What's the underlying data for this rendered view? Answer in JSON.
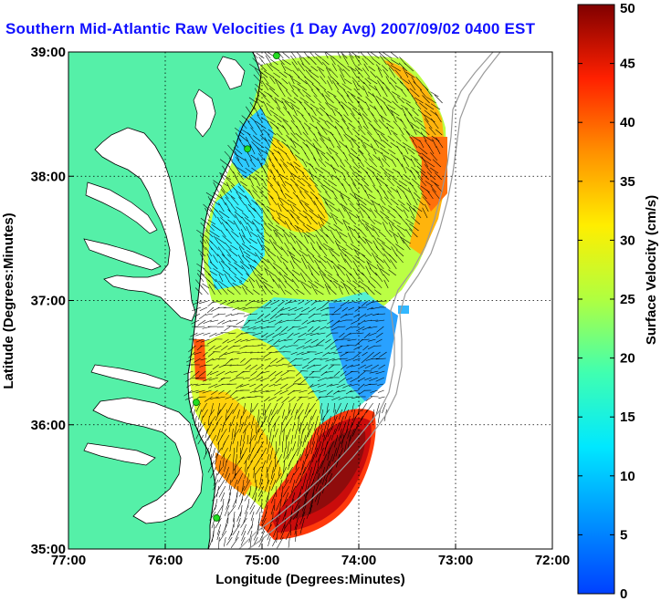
{
  "chart_data": {
    "type": "heatmap",
    "title": "Southern Mid-Atlantic Raw Velocities (1 Day Avg) 2007/09/02 0400 EST",
    "xlabel": "Longitude (Degrees:Minutes)",
    "ylabel": "Latitude (Degrees:Minutes)",
    "xlim": [
      -77,
      -72
    ],
    "ylim": [
      35,
      39
    ],
    "x_ticks": [
      {
        "value": -77,
        "label": "77:00"
      },
      {
        "value": -76,
        "label": "76:00"
      },
      {
        "value": -75,
        "label": "75:00"
      },
      {
        "value": -74,
        "label": "74:00"
      },
      {
        "value": -73,
        "label": "73:00"
      },
      {
        "value": -72,
        "label": "72:00"
      }
    ],
    "y_ticks": [
      {
        "value": 35,
        "label": "35:00"
      },
      {
        "value": 36,
        "label": "36:00"
      },
      {
        "value": 37,
        "label": "37:00"
      },
      {
        "value": 38,
        "label": "38:00"
      },
      {
        "value": 39,
        "label": "39:00"
      }
    ],
    "grid": true,
    "colorbar": {
      "label": "Surface Velocity (cm/s)",
      "min": 0,
      "max": 50,
      "ticks": [
        "0",
        "5",
        "10",
        "15",
        "20",
        "25",
        "30",
        "35",
        "40",
        "45",
        "50"
      ],
      "colormap": "jet"
    },
    "colors": {
      "land": "#55f0a8",
      "water_outside": "#ffffff",
      "coastline": "#000000",
      "shelf_contour": "#9a9a9a",
      "station_marker": "#22dd22"
    },
    "stations": [
      {
        "lon": -74.85,
        "lat": 38.97
      },
      {
        "lon": -75.15,
        "lat": 38.22
      },
      {
        "lon": -75.68,
        "lat": 36.18
      },
      {
        "lon": -75.47,
        "lat": 35.25
      }
    ],
    "velocity_regions": [
      {
        "region": "northern offshore edge",
        "speed_cm_s": 33
      },
      {
        "region": "northern interior",
        "speed_cm_s": 22
      },
      {
        "region": "near-coast strip off Delmarva",
        "speed_cm_s": 12
      },
      {
        "region": "central shelf near 37N",
        "speed_cm_s": 15
      },
      {
        "region": "eastern nub near 36.8N 73.7W",
        "speed_cm_s": 8
      },
      {
        "region": "off Cape Hatteras northeast",
        "speed_cm_s": 47
      },
      {
        "region": "southern shelf near 36N 75.3W",
        "speed_cm_s": 27
      }
    ]
  }
}
